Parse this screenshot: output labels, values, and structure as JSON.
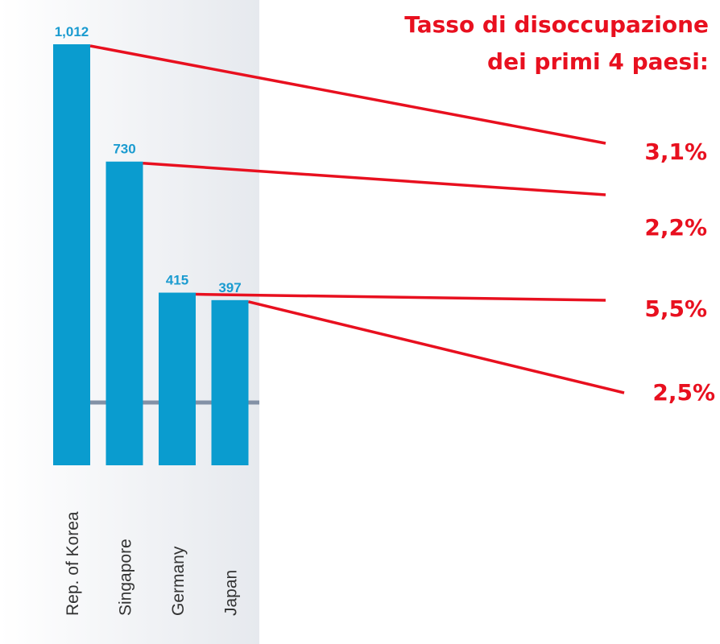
{
  "chart_data": {
    "type": "bar",
    "categories": [
      "Rep. of Korea",
      "Singapore",
      "Germany",
      "Japan"
    ],
    "values": [
      1012,
      730,
      415,
      397
    ],
    "value_labels": [
      "1,012",
      "730",
      "415",
      "397"
    ],
    "color": "#0a9ccf",
    "annotation_title": [
      "Tasso di disoccupazione",
      "dei primi 4 paesi:"
    ],
    "annotations": [
      "3,1%",
      "2,2%",
      "5,5%",
      "2,5%"
    ]
  }
}
